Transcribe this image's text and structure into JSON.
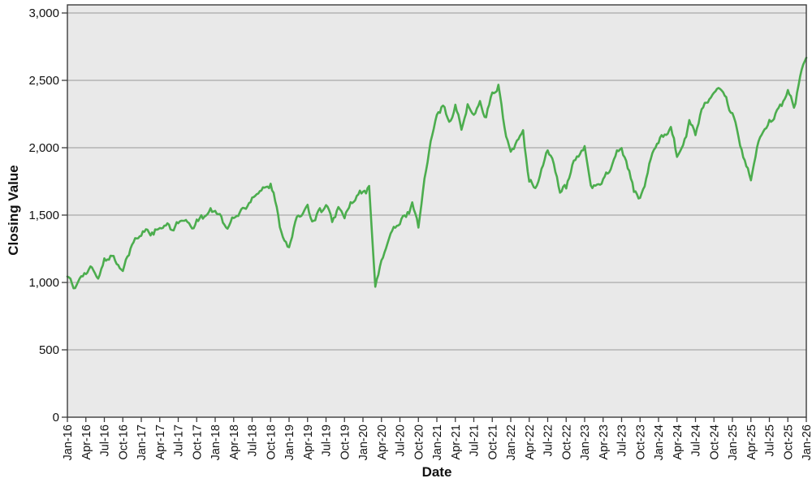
{
  "chart_data": {
    "type": "line",
    "title": "",
    "xlabel": "Date",
    "ylabel": "Closing Value",
    "legend": "none",
    "grid": "horizontal",
    "ylim": [
      0,
      3000
    ],
    "y_grid_values": [
      0,
      500,
      1000,
      1500,
      2000,
      2500,
      3000
    ],
    "y_tick_labels": [
      "0",
      "500",
      "1,000",
      "1,500",
      "2,000",
      "2,500",
      "3,000"
    ],
    "x_tick_interval_months": 3,
    "x_tick_labels": [
      "Jan-16",
      "Apr-16",
      "Jul-16",
      "Oct-16",
      "Jan-17",
      "Apr-17",
      "Jul-17",
      "Oct-17",
      "Jan-18",
      "Apr-18",
      "Jul-18",
      "Oct-18",
      "Jan-19",
      "Apr-19",
      "Jul-19",
      "Oct-19",
      "Jan-20",
      "Apr-20",
      "Jul-20",
      "Oct-20",
      "Jan-21",
      "Apr-21",
      "Jul-21",
      "Oct-21",
      "Jan-22",
      "Apr-22",
      "Jul-22",
      "Oct-22",
      "Jan-23",
      "Apr-23",
      "Jul-23",
      "Oct-23",
      "Jan-24",
      "Apr-24",
      "Jul-24",
      "Oct-24",
      "Jan-25",
      "Apr-25",
      "Jul-25",
      "Oct-25",
      "Jan-26"
    ],
    "series": [
      {
        "name": "Closing Value",
        "start": "Jan-16",
        "end": "Jan-26",
        "interval": "month",
        "color": "#4cad4e",
        "monthly_values": [
          1060,
          950,
          1030,
          1080,
          1100,
          1030,
          1160,
          1200,
          1150,
          1090,
          1230,
          1310,
          1360,
          1390,
          1360,
          1400,
          1420,
          1400,
          1440,
          1470,
          1400,
          1450,
          1490,
          1520,
          1550,
          1470,
          1400,
          1480,
          1520,
          1560,
          1620,
          1680,
          1700,
          1730,
          1550,
          1330,
          1260,
          1440,
          1520,
          1560,
          1450,
          1540,
          1560,
          1470,
          1540,
          1500,
          1570,
          1640,
          1670,
          1700,
          980,
          1150,
          1300,
          1400,
          1440,
          1500,
          1580,
          1430,
          1750,
          2050,
          2250,
          2320,
          2180,
          2300,
          2150,
          2300,
          2250,
          2330,
          2230,
          2400,
          2450,
          2150,
          1950,
          2050,
          2120,
          1750,
          1700,
          1820,
          2000,
          1870,
          1680,
          1700,
          1870,
          1950,
          2000,
          1720,
          1700,
          1780,
          1820,
          1950,
          2000,
          1850,
          1700,
          1600,
          1780,
          1950,
          2050,
          2100,
          2150,
          1950,
          2000,
          2200,
          2100,
          2280,
          2350,
          2400,
          2450,
          2350,
          2250,
          2080,
          1900,
          1760,
          2000,
          2120,
          2180,
          2260,
          2320,
          2420,
          2300,
          2520,
          2690
        ]
      }
    ],
    "style": {
      "plot_background": "#e9e9e9",
      "gridline_color": "#999999",
      "border_color": "#3c3c3c",
      "tick_color": "#3c3c3c",
      "text_color": "#111111",
      "line_width": 2.6,
      "jitter_hash": 16,
      "jitter_wave": 13,
      "samples_per_month": 4
    }
  }
}
